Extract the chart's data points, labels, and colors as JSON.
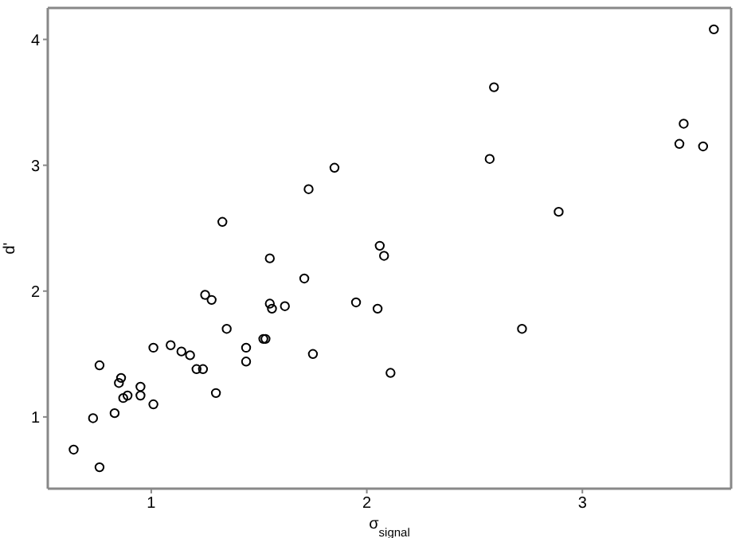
{
  "chart_data": {
    "type": "scatter",
    "xlabel": "σ$_{signal}$",
    "ylabel": "d'",
    "marker": "circle",
    "xlim": [
      0.52,
      3.69
    ],
    "ylim": [
      0.43,
      4.25
    ],
    "xticks": [
      1,
      2,
      3
    ],
    "yticks": [
      1,
      2,
      3,
      4
    ],
    "series": [
      {
        "color": "#000000",
        "x": [
          0.64,
          0.76,
          0.73,
          0.76,
          0.83,
          0.85,
          0.86,
          0.87,
          0.89,
          0.95,
          0.95,
          1.01,
          1.01,
          1.09,
          1.14,
          1.18,
          1.21,
          1.24,
          1.25,
          1.28,
          1.3,
          1.35,
          1.44,
          1.44,
          1.52,
          1.53,
          1.55,
          1.56,
          1.55,
          1.62,
          1.71,
          1.75,
          1.95,
          2.05,
          2.08,
          2.11,
          1.85,
          1.73,
          1.33,
          2.06,
          3.61,
          2.59,
          3.47,
          3.45,
          3.56,
          2.57,
          2.89,
          2.72
        ],
        "values": [
          0.74,
          0.6,
          0.99,
          1.41,
          1.03,
          1.27,
          1.31,
          1.15,
          1.17,
          1.24,
          1.17,
          1.1,
          1.55,
          1.57,
          1.52,
          1.49,
          1.38,
          1.38,
          1.97,
          1.93,
          1.19,
          1.7,
          1.55,
          1.44,
          1.62,
          1.62,
          1.9,
          1.86,
          2.26,
          1.88,
          2.1,
          1.5,
          1.91,
          1.86,
          2.28,
          1.35,
          2.98,
          2.81,
          2.55,
          2.36,
          4.08,
          3.62,
          3.33,
          3.17,
          3.15,
          3.05,
          2.63,
          1.7
        ]
      }
    ]
  }
}
